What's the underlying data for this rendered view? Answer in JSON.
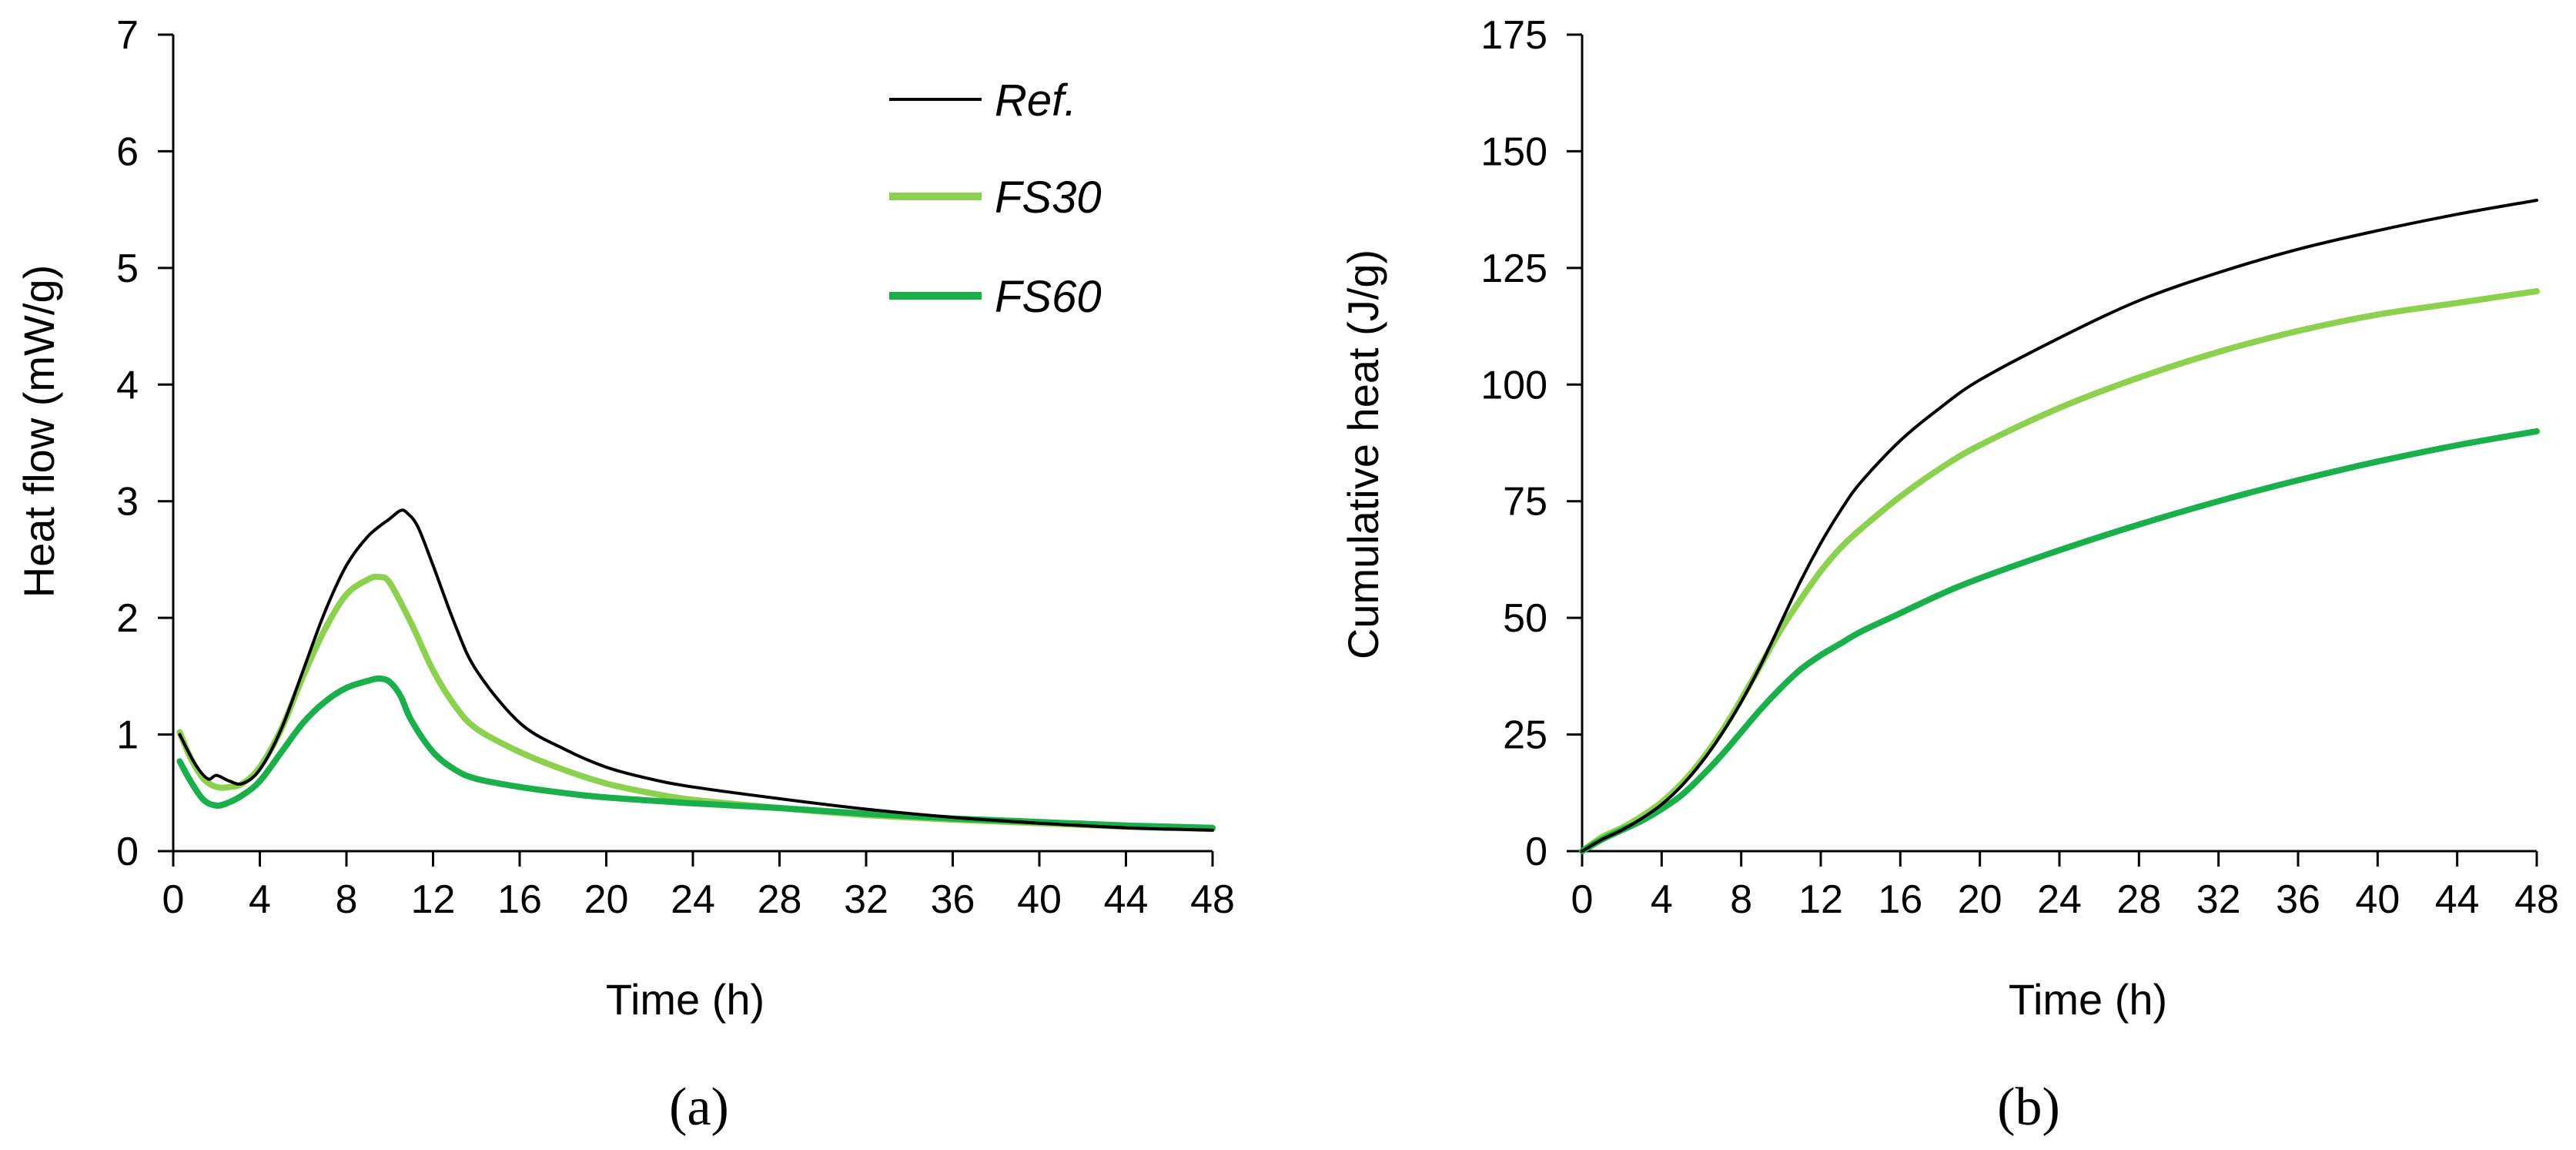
{
  "colors": {
    "ref": "#000000",
    "fs30": "#8CD04F",
    "fs60": "#1BAF4B",
    "axis": "#000000"
  },
  "chart_data": [
    {
      "id": "a",
      "type": "line",
      "caption": "(a)",
      "xlabel": "Time (h)",
      "ylabel": "Heat flow (mW/g)",
      "xlim": [
        0,
        48
      ],
      "ylim": [
        0,
        7
      ],
      "xticks": [
        0,
        4,
        8,
        12,
        16,
        20,
        24,
        28,
        32,
        36,
        40,
        44,
        48
      ],
      "yticks": [
        0,
        1,
        2,
        3,
        4,
        5,
        6,
        7
      ],
      "grid": false,
      "legend_position": "top-right",
      "series": [
        {
          "name": "Ref.",
          "color_key": "ref",
          "x": [
            0.3,
            1.0,
            1.6,
            2.0,
            2.6,
            3.2,
            4.0,
            5.0,
            6.0,
            7.0,
            8.0,
            9.0,
            10.0,
            10.5,
            10.8,
            11.3,
            12.0,
            13.0,
            14.0,
            16.0,
            18.0,
            20.0,
            22.0,
            24.0,
            28.0,
            32.0,
            36.0,
            40.0,
            44.0,
            48.0
          ],
          "y": [
            1.0,
            0.75,
            0.62,
            0.65,
            0.6,
            0.58,
            0.7,
            1.05,
            1.55,
            2.05,
            2.45,
            2.7,
            2.85,
            2.92,
            2.9,
            2.78,
            2.45,
            1.95,
            1.55,
            1.1,
            0.88,
            0.72,
            0.62,
            0.55,
            0.45,
            0.36,
            0.29,
            0.24,
            0.2,
            0.18
          ]
        },
        {
          "name": "FS30",
          "color_key": "fs30",
          "x": [
            0.3,
            0.8,
            1.4,
            2.0,
            2.6,
            3.2,
            4.0,
            5.0,
            6.0,
            7.0,
            8.0,
            9.0,
            9.5,
            10.0,
            11.0,
            12.0,
            13.0,
            14.0,
            16.0,
            18.0,
            20.0,
            22.0,
            24.0,
            28.0,
            32.0,
            36.0,
            40.0,
            44.0,
            48.0
          ],
          "y": [
            1.02,
            0.8,
            0.62,
            0.55,
            0.55,
            0.58,
            0.72,
            1.05,
            1.5,
            1.9,
            2.2,
            2.33,
            2.35,
            2.3,
            1.95,
            1.55,
            1.25,
            1.05,
            0.85,
            0.7,
            0.58,
            0.5,
            0.44,
            0.37,
            0.31,
            0.27,
            0.24,
            0.21,
            0.19
          ]
        },
        {
          "name": "FS60",
          "color_key": "fs60",
          "x": [
            0.3,
            0.8,
            1.4,
            2.0,
            2.6,
            3.2,
            4.0,
            5.0,
            6.0,
            7.0,
            8.0,
            9.0,
            9.5,
            10.0,
            10.5,
            11.0,
            12.0,
            13.0,
            14.0,
            16.0,
            18.0,
            20.0,
            24.0,
            28.0,
            32.0,
            36.0,
            40.0,
            44.0,
            48.0
          ],
          "y": [
            0.77,
            0.6,
            0.44,
            0.39,
            0.42,
            0.48,
            0.6,
            0.85,
            1.1,
            1.28,
            1.4,
            1.46,
            1.48,
            1.45,
            1.33,
            1.12,
            0.85,
            0.7,
            0.62,
            0.55,
            0.5,
            0.46,
            0.41,
            0.37,
            0.32,
            0.28,
            0.25,
            0.22,
            0.2
          ]
        }
      ]
    },
    {
      "id": "b",
      "type": "line",
      "caption": "(b)",
      "xlabel": "Time (h)",
      "ylabel": "Cumulative heat (J/g)",
      "xlim": [
        0,
        48
      ],
      "ylim": [
        0,
        175
      ],
      "xticks": [
        0,
        4,
        8,
        12,
        16,
        20,
        24,
        28,
        32,
        36,
        40,
        44,
        48
      ],
      "yticks": [
        0,
        25,
        50,
        75,
        100,
        125,
        150,
        175
      ],
      "grid": false,
      "series": [
        {
          "name": "Ref.",
          "color_key": "ref",
          "x": [
            0,
            1,
            2,
            3,
            4,
            5,
            6,
            7,
            8,
            9,
            10,
            11,
            12,
            13,
            14,
            16,
            18,
            20,
            24,
            28,
            32,
            36,
            40,
            44,
            48
          ],
          "y": [
            0,
            2.5,
            4.5,
            7,
            10,
            14,
            19,
            25,
            32,
            40,
            49,
            58,
            66,
            73,
            79,
            88,
            95,
            101,
            110,
            118,
            124,
            129,
            133,
            136.5,
            139.5
          ]
        },
        {
          "name": "FS30",
          "color_key": "fs30",
          "x": [
            0,
            1,
            2,
            3,
            4,
            5,
            6,
            7,
            8,
            9,
            10,
            11,
            12,
            13,
            14,
            16,
            18,
            20,
            24,
            28,
            32,
            36,
            40,
            44,
            48
          ],
          "y": [
            0,
            3,
            5,
            7.5,
            10.5,
            14.5,
            19.5,
            25.5,
            32.5,
            40,
            47.5,
            54,
            60,
            65,
            69,
            76,
            82,
            87,
            95,
            101.5,
            107,
            111.5,
            115,
            117.5,
            120
          ]
        },
        {
          "name": "FS60",
          "color_key": "fs60",
          "x": [
            0,
            1,
            2,
            3,
            4,
            5,
            6,
            7,
            8,
            9,
            10,
            11,
            12,
            13,
            14,
            16,
            18,
            20,
            24,
            28,
            32,
            36,
            40,
            44,
            48
          ],
          "y": [
            0,
            2.5,
            4.5,
            6.5,
            9,
            12,
            16,
            20.5,
            25.5,
            30.5,
            35,
            39,
            42,
            44.5,
            47,
            51,
            55,
            58.5,
            64.5,
            70,
            75,
            79.5,
            83.5,
            87,
            90
          ]
        }
      ]
    }
  ]
}
